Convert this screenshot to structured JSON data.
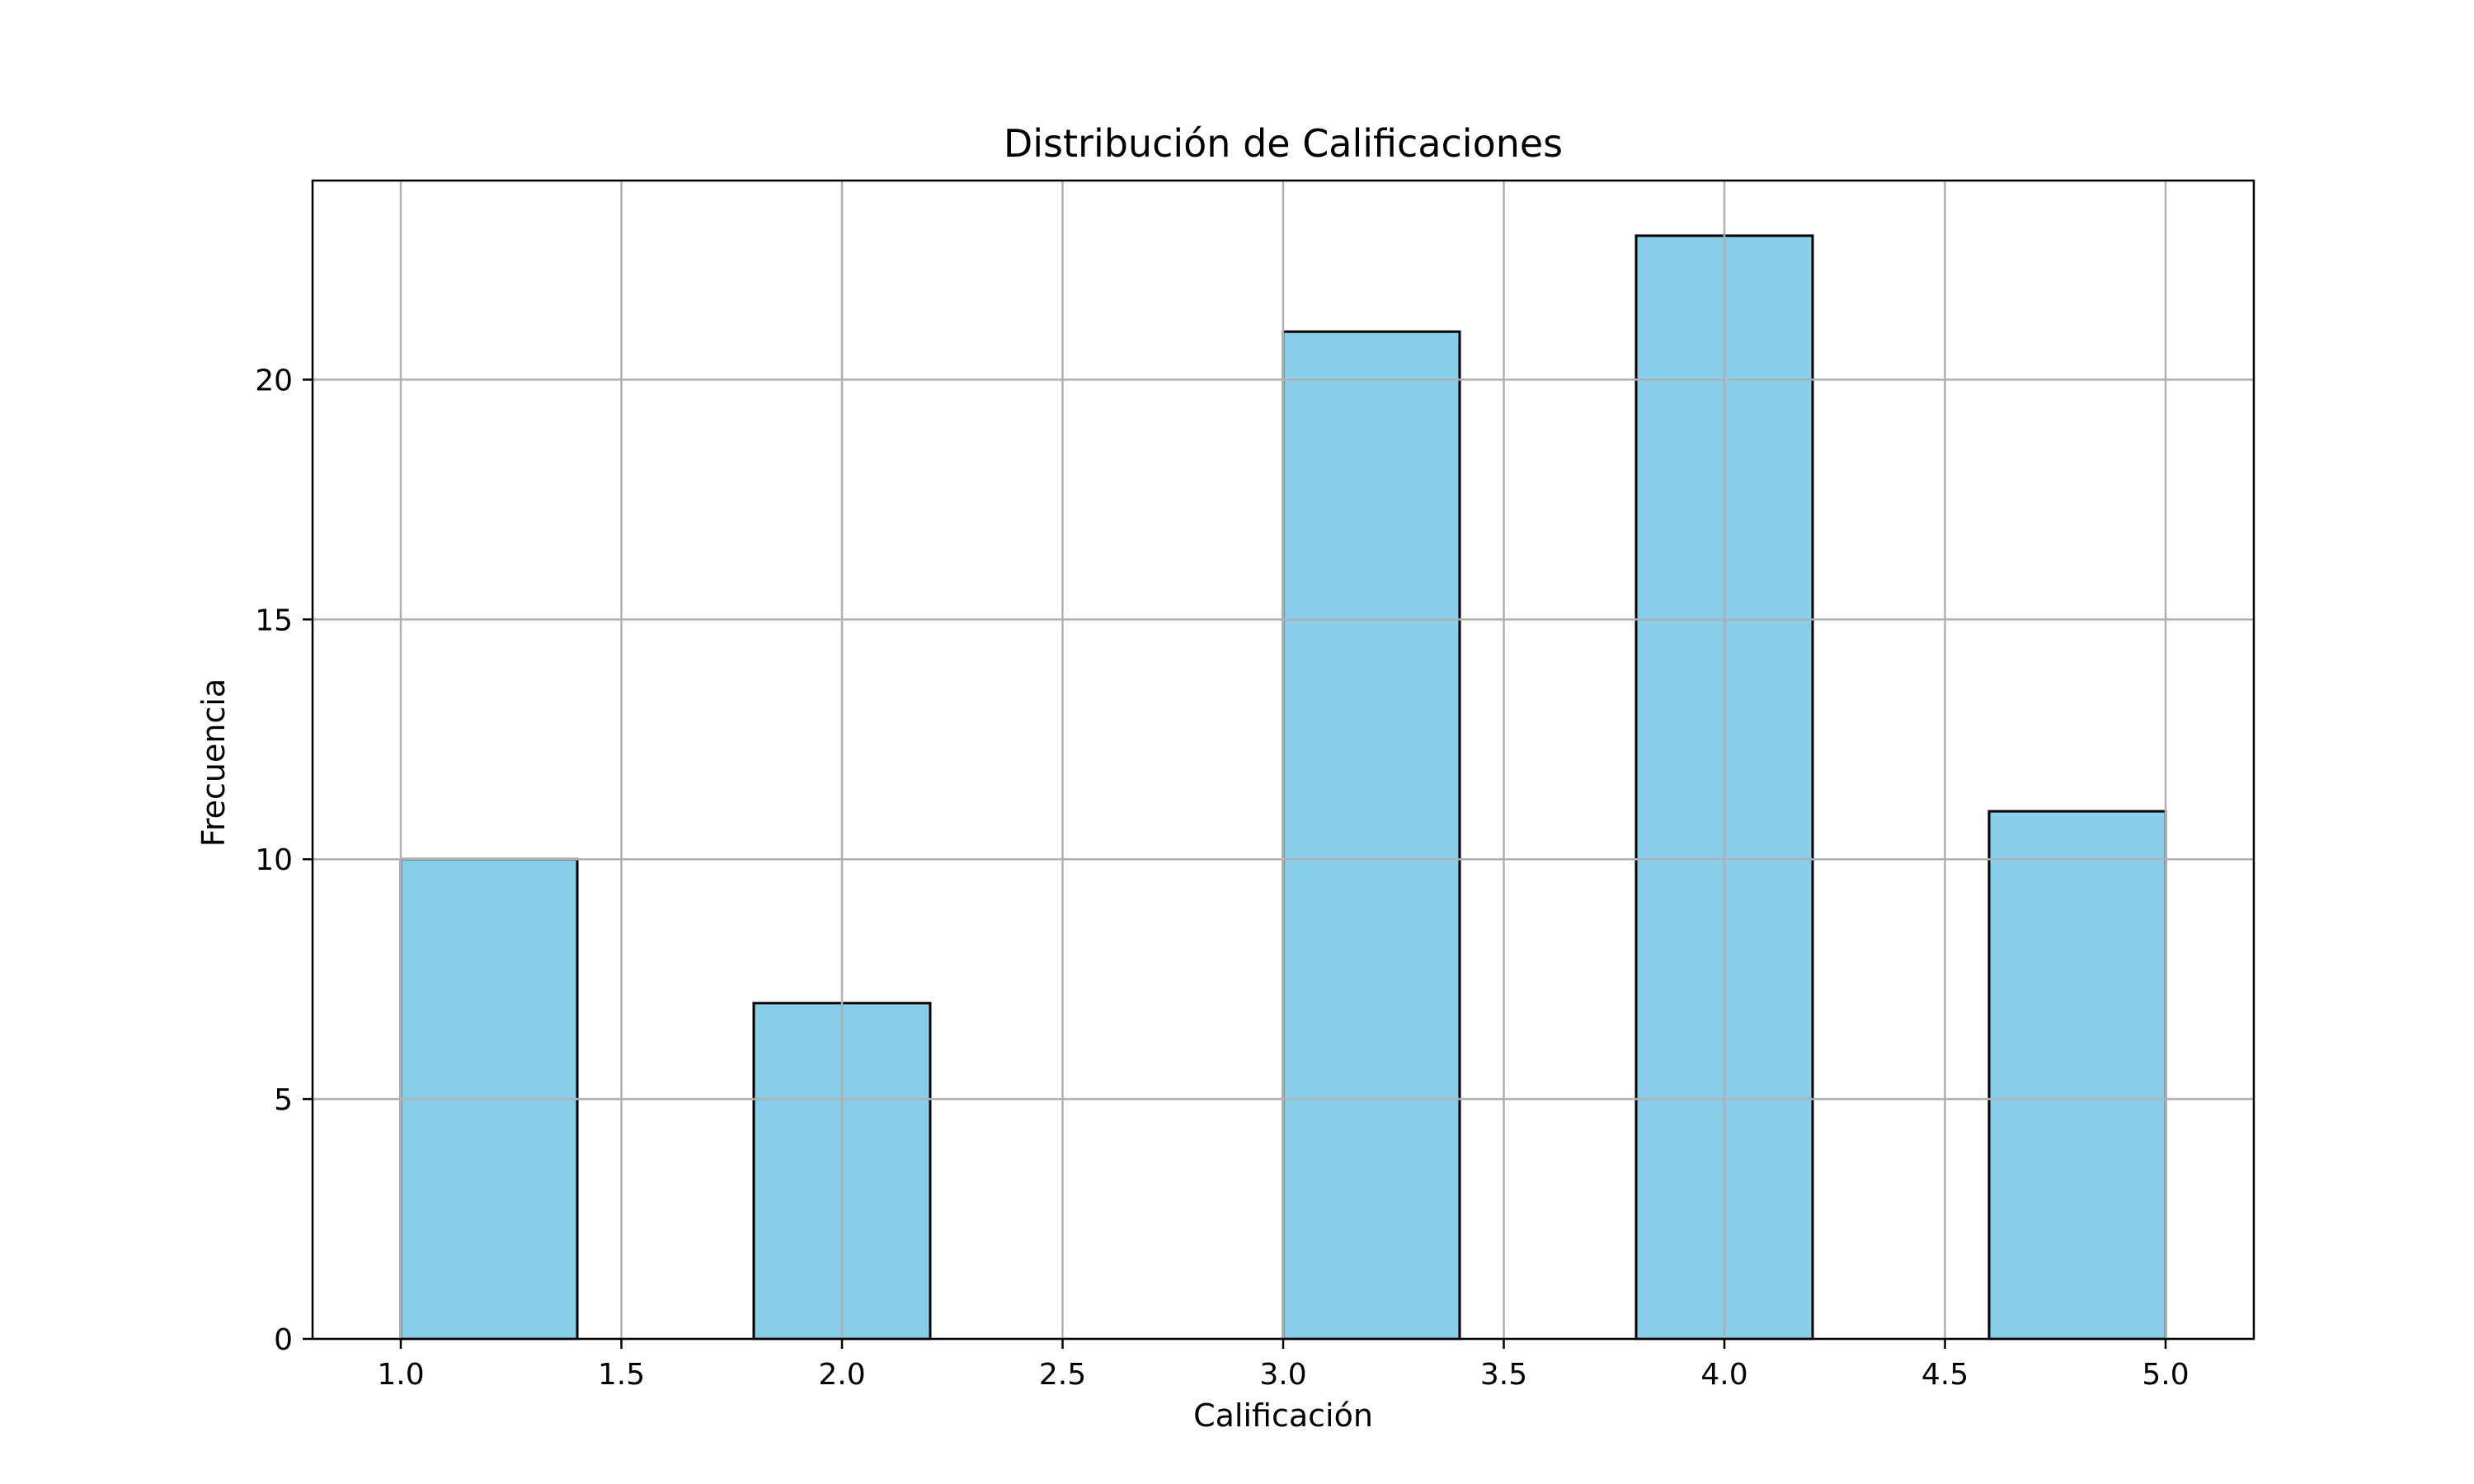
{
  "chart_data": {
    "type": "bar",
    "title": "Distribución de Calificaciones",
    "xlabel": "Calificación",
    "ylabel": "Frecuencia",
    "xlim": [
      0.8,
      5.2
    ],
    "ylim": [
      0,
      24.15
    ],
    "grid": true,
    "bins": [
      {
        "x0": 1.0,
        "x1": 1.4,
        "value": 10
      },
      {
        "x0": 1.4,
        "x1": 1.8,
        "value": 0
      },
      {
        "x0": 1.8,
        "x1": 2.2,
        "value": 7
      },
      {
        "x0": 2.2,
        "x1": 2.6,
        "value": 0
      },
      {
        "x0": 2.6,
        "x1": 3.0,
        "value": 0
      },
      {
        "x0": 3.0,
        "x1": 3.4,
        "value": 21
      },
      {
        "x0": 3.4,
        "x1": 3.8,
        "value": 0
      },
      {
        "x0": 3.8,
        "x1": 4.2,
        "value": 23
      },
      {
        "x0": 4.2,
        "x1": 4.6,
        "value": 0
      },
      {
        "x0": 4.6,
        "x1": 5.0,
        "value": 11
      }
    ],
    "xticks": [
      "1.0",
      "1.5",
      "2.0",
      "2.5",
      "3.0",
      "3.5",
      "4.0",
      "4.5",
      "5.0"
    ],
    "yticks": [
      "0",
      "5",
      "10",
      "15",
      "20"
    ],
    "colors": {
      "bar_fill": "#87CEEB",
      "bar_edge": "#000000",
      "grid": "#b0b0b0"
    }
  }
}
